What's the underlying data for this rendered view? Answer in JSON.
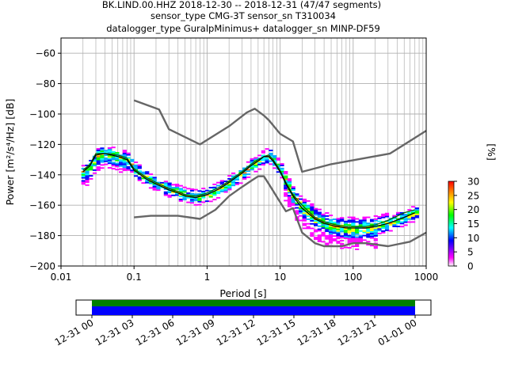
{
  "header": {
    "line1": "BK.LIND.00.HHZ   2018-12-30 -- 2018-12-31  (47/47 segments)",
    "line2": "sensor_type CMG-3T sensor_sn T310034",
    "line3": "datalogger_type GuralpMinimus+ datalogger_sn MINP-DF59"
  },
  "chart_data": [
    {
      "type": "heatmap",
      "title": "BK.LIND.00.HHZ   2018-12-30 -- 2018-12-31  (47/47 segments)",
      "xlabel": "Period [s]",
      "ylabel": "Power [m²/s⁴/Hz] [dB]",
      "x_scale": "log",
      "xlim": [
        0.01,
        1000
      ],
      "ylim": [
        -200,
        -50
      ],
      "x_ticks": [
        0.01,
        0.1,
        1,
        10,
        100,
        1000
      ],
      "x_tick_labels": [
        "0.01",
        "0.1",
        "1",
        "10",
        "100",
        "1000"
      ],
      "y_ticks": [
        -200,
        -180,
        -160,
        -140,
        -120,
        -100,
        -80,
        -60
      ],
      "y_tick_labels": [
        "−200",
        "−180",
        "−160",
        "−140",
        "−120",
        "−100",
        "−80",
        "−60"
      ],
      "grid": true,
      "colorbar": {
        "label": "[%]",
        "range": [
          0,
          30
        ],
        "ticks": [
          0,
          5,
          10,
          15,
          20,
          25,
          30
        ],
        "colors": [
          "#ffffff",
          "#ff00ff",
          "#0000ff",
          "#00ffff",
          "#00ff00",
          "#ffff00",
          "#ff8000",
          "#ff0000"
        ]
      },
      "series": [
        {
          "kind": "mode",
          "x": [
            0.02,
            0.025,
            0.03,
            0.04,
            0.06,
            0.08,
            0.1,
            0.15,
            0.2,
            0.3,
            0.4,
            0.5,
            0.7,
            1,
            1.5,
            2,
            3,
            4,
            5,
            6,
            7,
            8,
            10,
            12,
            15,
            20,
            30,
            40,
            60,
            80,
            100,
            150,
            200,
            300,
            500,
            700
          ],
          "y": [
            -138,
            -134,
            -127,
            -126,
            -128,
            -130,
            -137,
            -143,
            -146,
            -150,
            -152,
            -154,
            -155,
            -153,
            -149,
            -145,
            -139,
            -134,
            -131,
            -128,
            -128,
            -131,
            -138,
            -146,
            -154,
            -162,
            -169,
            -172,
            -174,
            -175,
            -175,
            -175,
            -174,
            -172,
            -168,
            -165
          ]
        },
        {
          "kind": "mean",
          "x": [
            0.02,
            0.025,
            0.03,
            0.04,
            0.06,
            0.08,
            0.1,
            0.15,
            0.2,
            0.3,
            0.4,
            0.5,
            0.7,
            1,
            1.5,
            2,
            3,
            4,
            5,
            6,
            7,
            8,
            10,
            12,
            15,
            20,
            30,
            40,
            60,
            80,
            100,
            150,
            200,
            300,
            500,
            700
          ],
          "y": [
            -137,
            -133,
            -126,
            -126,
            -127,
            -129,
            -136,
            -142,
            -145,
            -149,
            -151,
            -153,
            -154,
            -152,
            -148,
            -144,
            -138,
            -133,
            -130,
            -128,
            -127,
            -130,
            -137,
            -145,
            -153,
            -160,
            -168,
            -171,
            -173,
            -174,
            -174,
            -174,
            -173,
            -170,
            -165,
            -163
          ]
        },
        {
          "kind": "noise_model_high",
          "x": [
            0.1,
            0.22,
            0.3,
            0.8,
            2,
            3.5,
            4.5,
            6,
            7,
            10,
            15,
            20,
            50,
            320,
            1000
          ],
          "y": [
            -91,
            -97,
            -110,
            -120,
            -108,
            -99,
            -96.5,
            -101,
            -104,
            -113,
            -118,
            -138,
            -133,
            -126,
            -111
          ]
        },
        {
          "kind": "noise_model_low",
          "x": [
            0.1,
            0.17,
            0.4,
            0.8,
            1.3,
            2,
            3,
            4,
            5,
            6,
            7,
            10,
            12,
            15,
            20,
            30,
            40,
            70,
            100,
            150,
            300,
            600,
            1000
          ],
          "y": [
            -168,
            -167,
            -167,
            -169,
            -163,
            -154,
            -148,
            -144,
            -141,
            -141,
            -146,
            -158,
            -164,
            -162,
            -178,
            -185,
            -187,
            -187,
            -185,
            -185,
            -187,
            -184,
            -178
          ]
        }
      ]
    },
    {
      "type": "timeline",
      "x_tick_labels": [
        "12-31 00",
        "12-31 03",
        "12-31 06",
        "12-31 09",
        "12-31 12",
        "12-31 15",
        "12-31 18",
        "12-31 21",
        "01-01 00"
      ],
      "x_range": [
        "12-31 00",
        "01-01 00"
      ],
      "bars": [
        {
          "name": "data",
          "color": "#008000",
          "start": "12-31 00",
          "end": "01-01 00"
        },
        {
          "name": "segments",
          "color": "#0000ff",
          "start": "12-31 00",
          "end": "01-01 00"
        }
      ]
    }
  ]
}
